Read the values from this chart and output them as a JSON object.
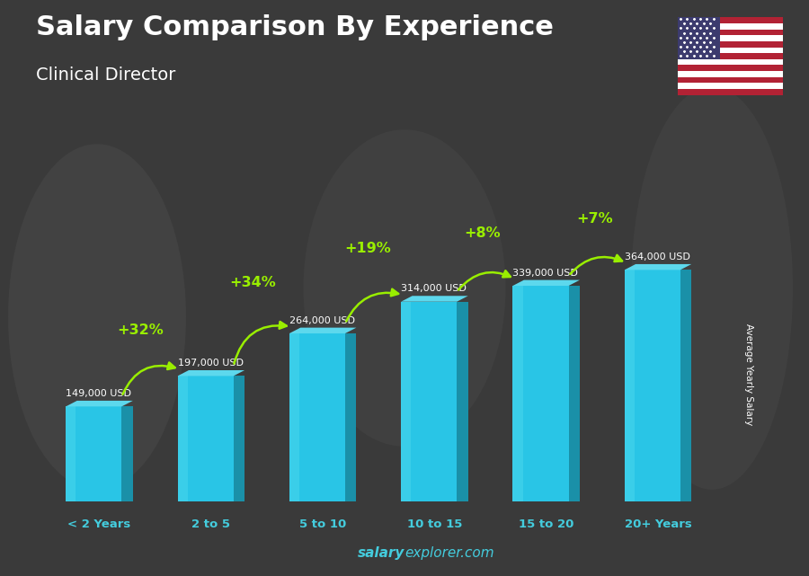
{
  "title": "Salary Comparison By Experience",
  "subtitle": "Clinical Director",
  "ylabel": "Average Yearly Salary",
  "footer_bold": "salary",
  "footer_regular": "explorer.com",
  "categories": [
    "< 2 Years",
    "2 to 5",
    "5 to 10",
    "10 to 15",
    "15 to 20",
    "20+ Years"
  ],
  "values": [
    149000,
    197000,
    264000,
    314000,
    339000,
    364000
  ],
  "labels": [
    "149,000 USD",
    "197,000 USD",
    "264,000 USD",
    "314,000 USD",
    "339,000 USD",
    "364,000 USD"
  ],
  "pct_changes": [
    null,
    "+32%",
    "+34%",
    "+19%",
    "+8%",
    "+7%"
  ],
  "bar_front_color": "#29c5e6",
  "bar_side_color": "#1a90a8",
  "bar_top_color": "#5dd8ed",
  "bar_left_color": "#1a90a8",
  "bg_color": "#404040",
  "title_color": "#ffffff",
  "subtitle_color": "#ffffff",
  "label_color": "#ffffff",
  "pct_color": "#99ee00",
  "footer_color": "#44ccdd",
  "cat_color": "#44ccdd",
  "ylabel_color": "#ffffff"
}
